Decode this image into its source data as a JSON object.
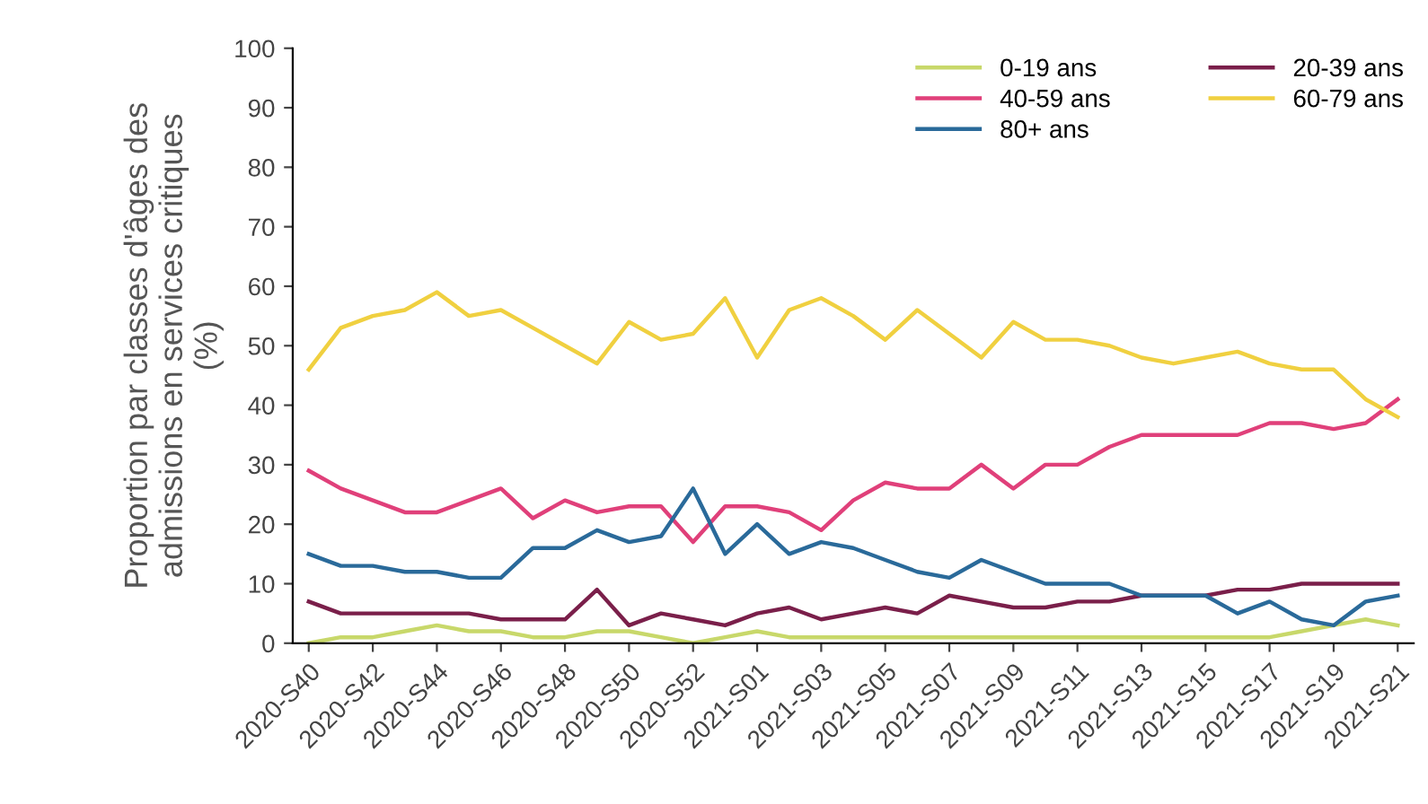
{
  "chart_data": {
    "type": "line",
    "ylabel": "Proportion par classes d'âges des\nadmissions en services critiques\n(%)",
    "categories": [
      "2020-S40",
      null,
      "2020-S42",
      null,
      "2020-S44",
      null,
      "2020-S46",
      null,
      "2020-S48",
      null,
      "2020-S50",
      null,
      "2020-S52",
      null,
      "2021-S01",
      null,
      "2021-S03",
      null,
      "2021-S05",
      null,
      "2021-S07",
      null,
      "2021-S09",
      null,
      "2021-S11",
      null,
      "2021-S13",
      null,
      "2021-S15",
      null,
      "2021-S17",
      null,
      "2021-S19",
      null,
      "2021-S21"
    ],
    "series": [
      {
        "name": "0-19 ans",
        "color": "#c8d86a",
        "values": [
          0,
          1,
          1,
          2,
          3,
          2,
          2,
          1,
          1,
          2,
          2,
          1,
          0,
          1,
          2,
          1,
          1,
          1,
          1,
          1,
          1,
          1,
          1,
          1,
          1,
          1,
          1,
          1,
          1,
          1,
          1,
          2,
          3,
          4,
          3
        ]
      },
      {
        "name": "20-39 ans",
        "color": "#7a1f4a",
        "values": [
          7,
          5,
          5,
          5,
          5,
          5,
          4,
          4,
          4,
          9,
          3,
          5,
          4,
          3,
          5,
          6,
          4,
          5,
          6,
          5,
          8,
          7,
          6,
          6,
          7,
          7,
          8,
          8,
          8,
          9,
          9,
          10,
          10,
          10,
          10
        ]
      },
      {
        "name": "40-59 ans",
        "color": "#e0407a",
        "values": [
          29,
          26,
          24,
          22,
          22,
          24,
          26,
          21,
          24,
          22,
          23,
          23,
          17,
          23,
          23,
          22,
          19,
          24,
          27,
          26,
          26,
          30,
          26,
          30,
          30,
          33,
          35,
          35,
          35,
          35,
          37,
          37,
          36,
          37,
          41
        ]
      },
      {
        "name": "60-79 ans",
        "color": "#f0d040",
        "values": [
          46,
          53,
          55,
          56,
          59,
          55,
          56,
          53,
          50,
          47,
          54,
          51,
          52,
          58,
          48,
          56,
          58,
          55,
          51,
          56,
          52,
          48,
          54,
          51,
          51,
          50,
          48,
          47,
          48,
          49,
          47,
          46,
          46,
          41,
          38
        ]
      },
      {
        "name": "80+ ans",
        "color": "#2a6a9a",
        "values": [
          15,
          13,
          13,
          12,
          12,
          11,
          11,
          16,
          16,
          19,
          17,
          18,
          26,
          15,
          20,
          15,
          17,
          16,
          14,
          12,
          11,
          14,
          12,
          10,
          10,
          10,
          8,
          8,
          8,
          5,
          7,
          4,
          3,
          7,
          8
        ]
      }
    ],
    "ylim": [
      0,
      100
    ],
    "yticks": [
      0,
      10,
      20,
      30,
      40,
      50,
      60,
      70,
      80,
      90,
      100
    ],
    "grid": false,
    "legend": "top right",
    "marker": "none",
    "line_style": "solid"
  }
}
